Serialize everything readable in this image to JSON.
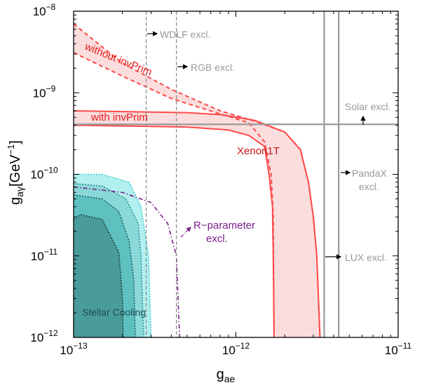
{
  "chart_data": {
    "type": "line",
    "xlabel_main": "g",
    "xlabel_sub": "ae",
    "ylabel_main": "g",
    "ylabel_sub": "aγ",
    "ylabel_unit": "[GeV",
    "ylabel_unit_exp": "−1",
    "ylabel_close": "]",
    "x_scale": "log",
    "y_scale": "log",
    "xlim": [
      1e-13,
      1e-11
    ],
    "ylim": [
      1e-12,
      1e-08
    ],
    "x_ticks": [
      {
        "value": 1e-13,
        "base": "10",
        "exp": "−13"
      },
      {
        "value": 1e-12,
        "base": "10",
        "exp": "−12"
      },
      {
        "value": 1e-11,
        "base": "10",
        "exp": "−11"
      }
    ],
    "y_ticks": [
      {
        "value": 1e-12,
        "base": "10",
        "exp": "−12"
      },
      {
        "value": 1e-11,
        "base": "10",
        "exp": "−11"
      },
      {
        "value": 1e-10,
        "base": "10",
        "exp": "−10"
      },
      {
        "value": 1e-09,
        "base": "10",
        "exp": "−9"
      },
      {
        "value": 1e-08,
        "base": "10",
        "exp": "−8"
      }
    ],
    "colors": {
      "xenon": "#ff4a4a",
      "xenon_fill": "#fbdddd",
      "exclusion": "#9a9a9a",
      "rparam": "#7a1f8a",
      "stellar_outer": "#b2efef",
      "stellar_mid": "#8ad8d8",
      "stellar_inner": "#5fc0c0",
      "stellar_core": "#4a9c9a",
      "text_gray": "#999999",
      "text_red": "#e21b1b",
      "text_darkred": "#c21515",
      "text_purple": "#7a1f8a",
      "text_teal": "#1d4f4f"
    },
    "labels": {
      "wdlf": "WDLF excl.",
      "rgb": "RGB excl.",
      "solar": "Solar excl.",
      "pandax_1": "PandaX",
      "pandax_2": "excl.",
      "lux": "LUX excl.",
      "xenon1t": "Xenon1T",
      "without": "without invPrim",
      "with": "with invPrim",
      "rparam_1": "R−parameter",
      "rparam_2": "excl.",
      "stellar": "Stellar Cooling"
    },
    "series": [
      {
        "name": "WDLF excl.",
        "kind": "vertical-limit",
        "x": 2.8e-13,
        "style": "dashed"
      },
      {
        "name": "RGB excl.",
        "kind": "vertical-limit",
        "x": 4.3e-13,
        "style": "dashed"
      },
      {
        "name": "Solar excl.",
        "kind": "horizontal-limit",
        "y": 4.1e-10,
        "style": "solid"
      },
      {
        "name": "PandaX excl.",
        "kind": "vertical-limit",
        "x": 3.5e-12,
        "style": "solid"
      },
      {
        "name": "LUX excl.",
        "kind": "vertical-limit",
        "x": 4.3e-12,
        "style": "solid"
      },
      {
        "name": "without invPrim",
        "kind": "band",
        "style": "dashed",
        "upper": [
          [
            1e-13,
            7e-09
          ],
          [
            2e-13,
            2.3e-09
          ],
          [
            4e-13,
            1.1e-09
          ],
          [
            8e-13,
            6e-10
          ],
          [
            1.3e-12,
            4.5e-10
          ],
          [
            2e-12,
            3.3e-10
          ],
          [
            2.5e-12,
            2e-10
          ],
          [
            2.8e-12,
            8e-11
          ],
          [
            3e-12,
            3e-11
          ],
          [
            3.15e-12,
            1e-11
          ],
          [
            3.3e-12,
            1e-12
          ]
        ],
        "lower": [
          [
            1e-13,
            3.1e-09
          ],
          [
            2e-13,
            1.6e-09
          ],
          [
            4e-13,
            8.5e-10
          ],
          [
            8e-13,
            5.5e-10
          ],
          [
            1.2e-12,
            4.3e-10
          ],
          [
            1.5e-12,
            2.5e-10
          ],
          [
            1.65e-12,
            1e-10
          ],
          [
            1.7e-12,
            3e-11
          ],
          [
            1.72e-12,
            1e-12
          ]
        ]
      },
      {
        "name": "with invPrim",
        "kind": "band",
        "style": "solid",
        "upper": [
          [
            1e-13,
            6e-10
          ],
          [
            5e-13,
            5.7e-10
          ],
          [
            8e-13,
            5.4e-10
          ],
          [
            1.3e-12,
            4.6e-10
          ],
          [
            2e-12,
            3.3e-10
          ],
          [
            2.5e-12,
            2e-10
          ],
          [
            2.8e-12,
            8e-11
          ],
          [
            3e-12,
            3e-11
          ],
          [
            3.15e-12,
            1e-11
          ],
          [
            3.3e-12,
            1e-12
          ]
        ],
        "lower": [
          [
            1e-13,
            4e-10
          ],
          [
            5e-13,
            3.8e-10
          ],
          [
            9e-13,
            3.5e-10
          ],
          [
            1.2e-12,
            3e-10
          ],
          [
            1.5e-12,
            2.2e-10
          ],
          [
            1.6e-12,
            1e-10
          ],
          [
            1.68e-12,
            4e-11
          ],
          [
            1.7e-12,
            1e-11
          ],
          [
            1.72e-12,
            1e-12
          ]
        ]
      },
      {
        "name": "R−parameter excl.",
        "kind": "curve",
        "style": "dashdot",
        "points": [
          [
            1e-13,
            7e-11
          ],
          [
            2e-13,
            6e-11
          ],
          [
            3e-13,
            4.5e-11
          ],
          [
            3.8e-13,
            2.5e-11
          ],
          [
            4.3e-13,
            1e-11
          ],
          [
            4.5e-13,
            1e-12
          ]
        ]
      },
      {
        "name": "Stellar Cooling",
        "kind": "contours",
        "levels": [
          {
            "points": [
              [
                1e-13,
                1e-10
              ],
              [
                1.5e-13,
                1e-10
              ],
              [
                2.2e-13,
                8e-11
              ],
              [
                2.6e-13,
                4e-11
              ],
              [
                2.9e-13,
                1e-11
              ],
              [
                3e-13,
                1e-12
              ]
            ]
          },
          {
            "points": [
              [
                1e-13,
                7.7e-11
              ],
              [
                1.5e-13,
                7.2e-11
              ],
              [
                2.1e-13,
                5e-11
              ],
              [
                2.5e-13,
                2.5e-11
              ],
              [
                2.6e-13,
                1e-11
              ],
              [
                2.7e-13,
                1e-12
              ]
            ]
          },
          {
            "points": [
              [
                1e-13,
                5.6e-11
              ],
              [
                1.5e-13,
                5e-11
              ],
              [
                1.9e-13,
                3.5e-11
              ],
              [
                2.2e-13,
                1.5e-11
              ],
              [
                2.35e-13,
                5e-12
              ],
              [
                2.4e-13,
                1e-12
              ]
            ]
          },
          {
            "points": [
              [
                1e-13,
                2.8e-11
              ],
              [
                1.1e-13,
                3.2e-11
              ],
              [
                1.5e-13,
                2.8e-11
              ],
              [
                1.9e-13,
                1.1e-11
              ],
              [
                2e-13,
                3e-12
              ],
              [
                2.02e-13,
                1e-12
              ]
            ]
          }
        ]
      }
    ]
  }
}
